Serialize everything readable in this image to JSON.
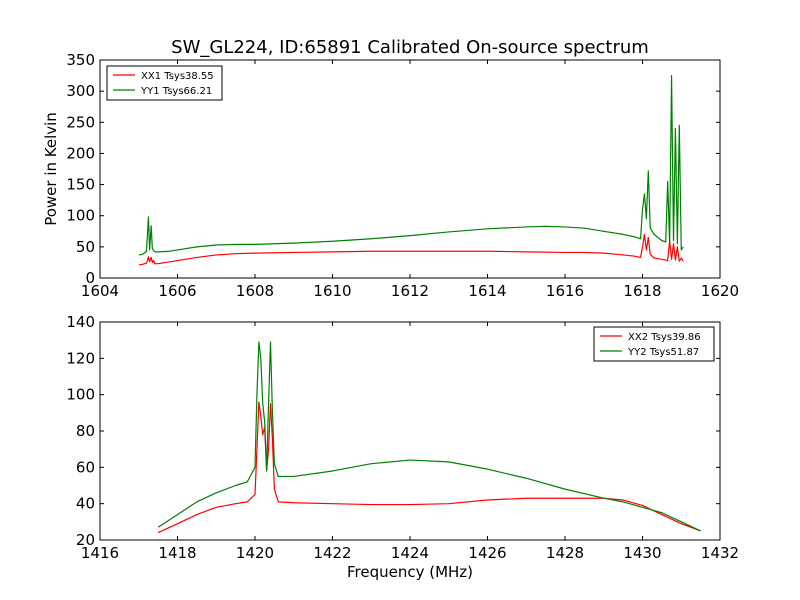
{
  "title": "SW_GL224, ID:65891 Calibrated On-source spectrum",
  "colors": {
    "xx": "#ff0000",
    "yy": "#008000",
    "axes": "#000000"
  },
  "chart_data": [
    {
      "type": "line",
      "title": "SW_GL224, ID:65891 Calibrated On-source spectrum",
      "xlabel": "",
      "ylabel": "Power in Kelvin",
      "xlim": [
        1604,
        1620
      ],
      "ylim": [
        0,
        350
      ],
      "xticks": [
        1604,
        1606,
        1608,
        1610,
        1612,
        1614,
        1616,
        1618,
        1620
      ],
      "yticks": [
        0,
        50,
        100,
        150,
        200,
        250,
        300,
        350
      ],
      "grid": false,
      "legend": "upper-left",
      "series": [
        {
          "name": "XX1 Tsys38.55",
          "color": "#ff0000",
          "x": [
            1605.0,
            1605.1,
            1605.2,
            1605.25,
            1605.28,
            1605.32,
            1605.35,
            1605.38,
            1605.42,
            1605.5,
            1605.8,
            1606.0,
            1606.5,
            1607.0,
            1607.5,
            1608.0,
            1609.0,
            1610.0,
            1611.0,
            1612.0,
            1613.0,
            1614.0,
            1615.0,
            1616.0,
            1616.5,
            1617.0,
            1617.5,
            1617.8,
            1617.95,
            1618.0,
            1618.05,
            1618.1,
            1618.15,
            1618.2,
            1618.3,
            1618.5,
            1618.65,
            1618.7,
            1618.75,
            1618.8,
            1618.85,
            1618.9,
            1618.95,
            1619.0,
            1619.05
          ],
          "y": [
            21,
            22,
            24,
            34,
            26,
            33,
            25,
            28,
            23,
            23,
            26,
            28,
            33,
            37,
            39,
            40,
            41,
            42,
            43,
            43,
            43,
            43,
            42,
            41,
            41,
            40,
            37,
            35,
            33,
            50,
            70,
            45,
            65,
            38,
            32,
            30,
            28,
            60,
            30,
            55,
            29,
            50,
            27,
            32,
            27
          ]
        },
        {
          "name": "YY1 Tsys66.21",
          "color": "#008000",
          "x": [
            1605.0,
            1605.1,
            1605.2,
            1605.25,
            1605.28,
            1605.32,
            1605.35,
            1605.38,
            1605.42,
            1605.5,
            1605.8,
            1606.0,
            1606.5,
            1607.0,
            1607.5,
            1608.0,
            1609.0,
            1610.0,
            1611.0,
            1612.0,
            1613.0,
            1614.0,
            1615.0,
            1615.5,
            1616.0,
            1616.5,
            1617.0,
            1617.5,
            1617.8,
            1617.95,
            1618.0,
            1618.05,
            1618.1,
            1618.15,
            1618.2,
            1618.3,
            1618.4,
            1618.5,
            1618.6,
            1618.65,
            1618.7,
            1618.75,
            1618.8,
            1618.85,
            1618.9,
            1618.95,
            1619.0,
            1619.05
          ],
          "y": [
            37,
            38,
            43,
            98,
            45,
            84,
            48,
            44,
            42,
            42,
            43,
            45,
            50,
            53,
            54,
            54,
            56,
            59,
            63,
            68,
            74,
            79,
            82,
            83,
            82,
            80,
            75,
            70,
            66,
            63,
            110,
            135,
            95,
            172,
            80,
            70,
            65,
            60,
            58,
            155,
            55,
            325,
            60,
            240,
            55,
            245,
            45,
            50
          ]
        }
      ]
    },
    {
      "type": "line",
      "title": "",
      "xlabel": "Frequency (MHz)",
      "ylabel": "",
      "xlim": [
        1416,
        1432
      ],
      "ylim": [
        20,
        140
      ],
      "xticks": [
        1416,
        1418,
        1420,
        1422,
        1424,
        1426,
        1428,
        1430,
        1432
      ],
      "yticks": [
        20,
        40,
        60,
        80,
        100,
        120,
        140
      ],
      "grid": false,
      "legend": "upper-right",
      "series": [
        {
          "name": "XX2 Tsys39.86",
          "color": "#ff0000",
          "x": [
            1417.5,
            1418.0,
            1418.5,
            1419.0,
            1419.5,
            1419.8,
            1420.0,
            1420.05,
            1420.1,
            1420.15,
            1420.2,
            1420.25,
            1420.3,
            1420.35,
            1420.4,
            1420.45,
            1420.5,
            1420.6,
            1421.0,
            1422.0,
            1423.0,
            1424.0,
            1425.0,
            1426.0,
            1427.0,
            1428.0,
            1429.0,
            1429.5,
            1430.0,
            1430.5,
            1431.0,
            1431.5
          ],
          "y": [
            24,
            29,
            34,
            38,
            40,
            41,
            45,
            70,
            96,
            88,
            78,
            82,
            58,
            70,
            95,
            75,
            48,
            41,
            40.5,
            40,
            39.5,
            39.5,
            40,
            42,
            43,
            43,
            43,
            42,
            39,
            34,
            29,
            25
          ]
        },
        {
          "name": "YY2 Tsys51.87",
          "color": "#008000",
          "x": [
            1417.5,
            1418.0,
            1418.5,
            1419.0,
            1419.5,
            1419.8,
            1420.0,
            1420.05,
            1420.1,
            1420.15,
            1420.2,
            1420.25,
            1420.3,
            1420.35,
            1420.4,
            1420.45,
            1420.5,
            1420.6,
            1421.0,
            1422.0,
            1423.0,
            1424.0,
            1425.0,
            1426.0,
            1427.0,
            1428.0,
            1429.0,
            1429.5,
            1430.0,
            1430.5,
            1431.0,
            1431.5
          ],
          "y": [
            27,
            34,
            41,
            46,
            50,
            52,
            60,
            100,
            129,
            120,
            95,
            85,
            58,
            95,
            129,
            90,
            62,
            55,
            55,
            58,
            62,
            64,
            63,
            59,
            54,
            48,
            43,
            41,
            38,
            35,
            30,
            25
          ]
        }
      ]
    }
  ]
}
